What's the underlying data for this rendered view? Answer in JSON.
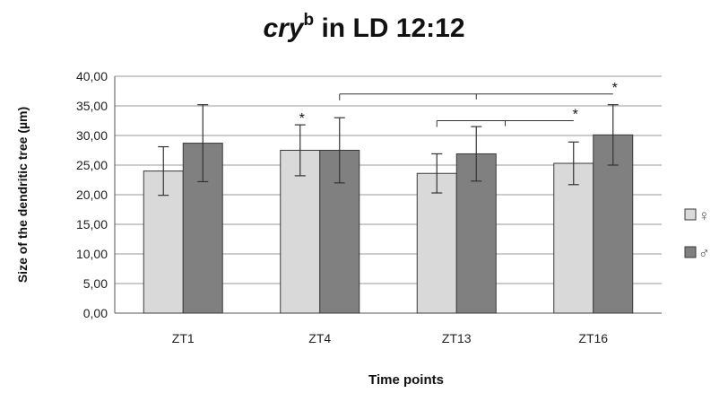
{
  "title": {
    "italic": "cry",
    "superscript": "b",
    "rest": " in LD 12:12"
  },
  "chart_data": {
    "type": "bar",
    "categories": [
      "ZT1",
      "ZT4",
      "ZT13",
      "ZT16"
    ],
    "series": [
      {
        "name": "♀",
        "values": [
          24.0,
          27.5,
          23.6,
          25.3
        ],
        "errors": [
          4.1,
          4.3,
          3.3,
          3.6
        ],
        "color": "#d9d9d9"
      },
      {
        "name": "♂",
        "values": [
          28.7,
          27.5,
          26.9,
          30.1
        ],
        "errors": [
          6.5,
          5.5,
          4.6,
          5.1
        ],
        "color": "#808080"
      }
    ],
    "xlabel": "Time points",
    "ylabel": "Size of the dendritic tree (µm)",
    "ylim": [
      0,
      40
    ],
    "yticks": [
      "0,00",
      "5,00",
      "10,00",
      "15,00",
      "20,00",
      "25,00",
      "30,00",
      "35,00",
      "40,00"
    ],
    "grid": true,
    "legend_position": "right",
    "annotations": [
      {
        "text": "*",
        "category": "ZT4",
        "series": "♀"
      },
      {
        "text": "*",
        "bracket_from": "ZT4",
        "bracket_to": "ZT16",
        "series": "♂"
      },
      {
        "text": "*",
        "bracket_from": "ZT13",
        "bracket_to": "ZT16",
        "series": "♀"
      }
    ]
  }
}
